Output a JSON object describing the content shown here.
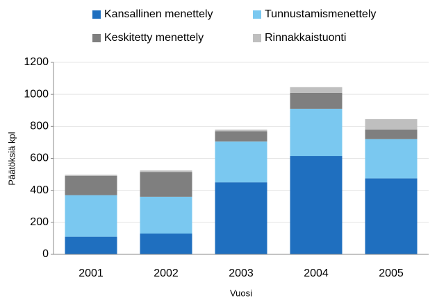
{
  "chart_data": {
    "type": "bar",
    "stacked": true,
    "x_label": "Vuosi",
    "y_label": "Päätöksiä kpl",
    "categories": [
      "2001",
      "2002",
      "2003",
      "2004",
      "2005"
    ],
    "series": [
      {
        "name": "Kansallinen menettely",
        "color": "#1f6fbf",
        "values": [
          110,
          130,
          450,
          615,
          475
        ]
      },
      {
        "name": "Tunnustamismenettely",
        "color": "#7ac8f0",
        "values": [
          260,
          230,
          255,
          295,
          245
        ]
      },
      {
        "name": "Keskitetty menettely",
        "color": "#7f7f7f",
        "values": [
          120,
          155,
          65,
          100,
          60
        ]
      },
      {
        "name": "Rinnakkaistuonti",
        "color": "#bfbfbf",
        "values": [
          8,
          10,
          10,
          35,
          65
        ]
      }
    ],
    "ylim": [
      0,
      1200
    ],
    "yticks": [
      0,
      200,
      400,
      600,
      800,
      1000,
      1200
    ],
    "grid": true,
    "legend": "top"
  }
}
